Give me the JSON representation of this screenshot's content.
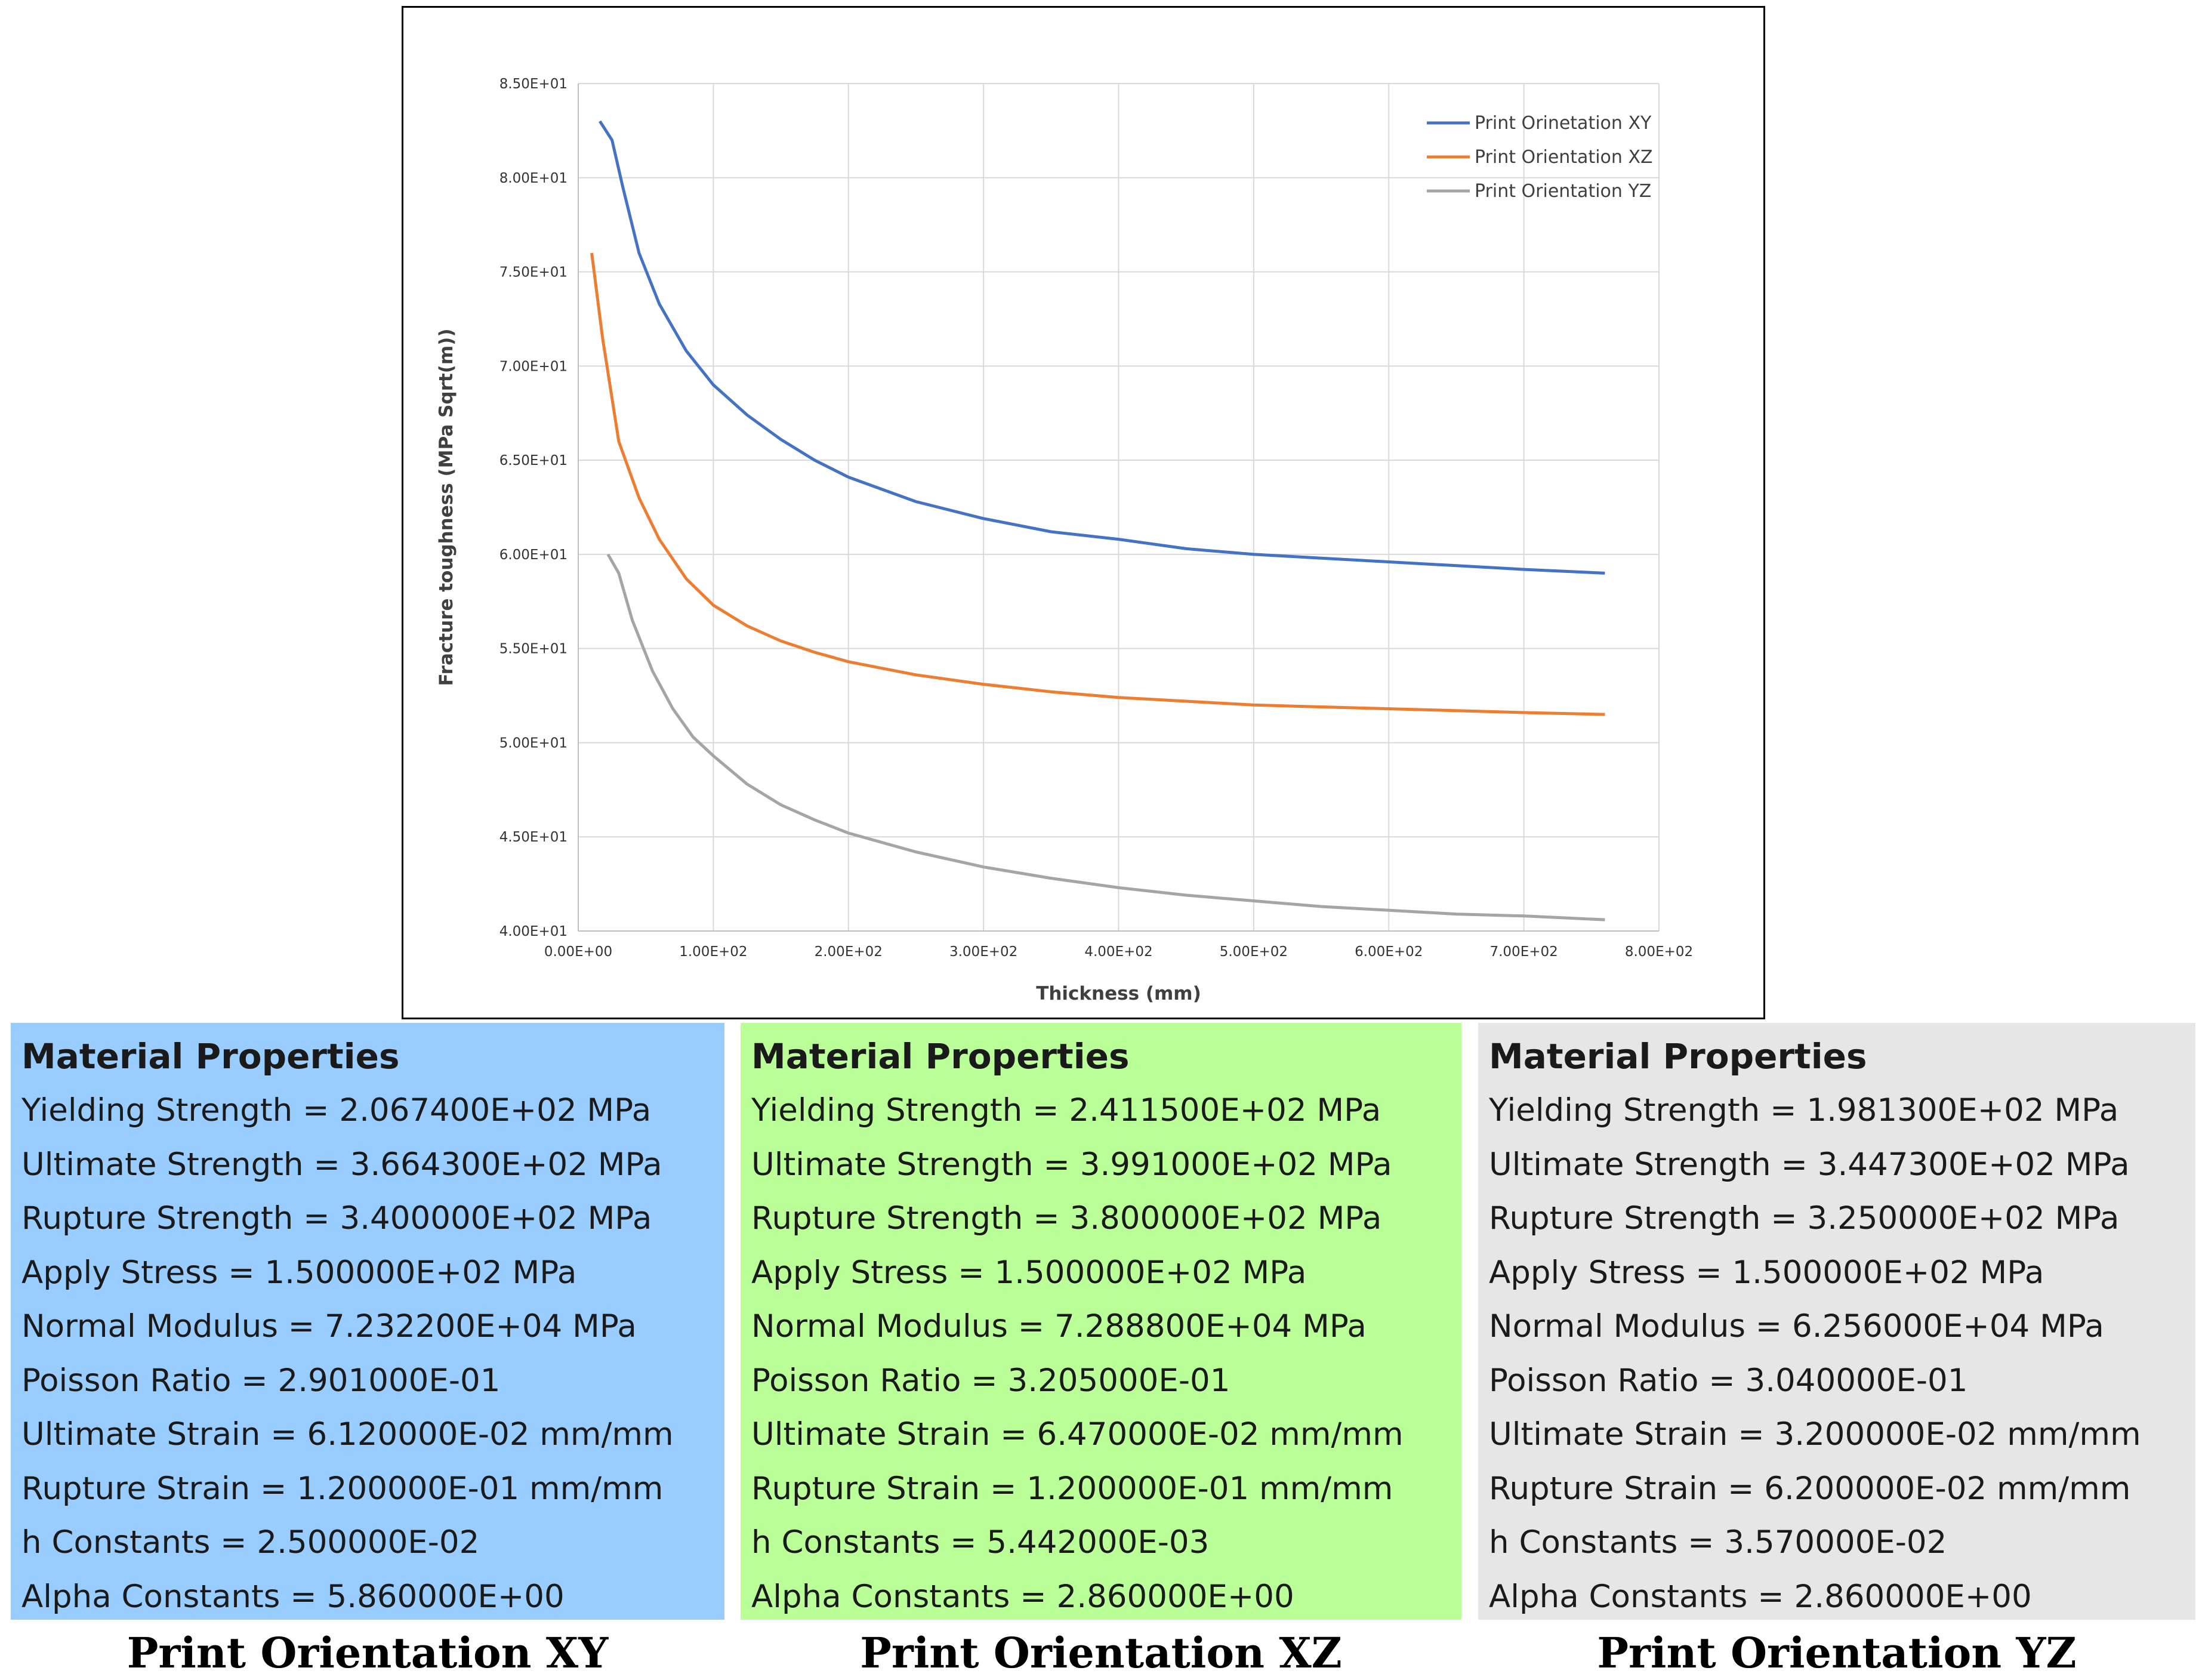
{
  "chart_data": {
    "type": "line",
    "title": "",
    "xlabel": "Thickness (mm)",
    "ylabel": "Fracture toughness (MPa Sqrt(m))",
    "xlim": [
      0,
      800
    ],
    "ylim": [
      40,
      85
    ],
    "x_ticks": [
      0,
      100,
      200,
      300,
      400,
      500,
      600,
      700,
      800
    ],
    "x_tick_labels": [
      "0.00E+00",
      "1.00E+02",
      "2.00E+02",
      "3.00E+02",
      "4.00E+02",
      "5.00E+02",
      "6.00E+02",
      "7.00E+02",
      "8.00E+02"
    ],
    "y_ticks": [
      40,
      45,
      50,
      55,
      60,
      65,
      70,
      75,
      80,
      85
    ],
    "y_tick_labels": [
      "4.00E+01",
      "4.50E+01",
      "5.00E+01",
      "5.50E+01",
      "6.00E+01",
      "6.50E+01",
      "7.00E+01",
      "7.50E+01",
      "8.00E+01",
      "8.50E+01"
    ],
    "grid": true,
    "legend_position": "top-right",
    "series": [
      {
        "name": "Print Orinetation XY",
        "color": "#4472c4",
        "x": [
          16,
          25,
          33,
          45,
          60,
          80,
          100,
          125,
          150,
          175,
          200,
          250,
          300,
          350,
          400,
          450,
          500,
          550,
          600,
          650,
          700,
          760
        ],
        "y": [
          83.0,
          82.0,
          79.5,
          76.0,
          73.3,
          70.8,
          69.0,
          67.4,
          66.1,
          65.0,
          64.1,
          62.8,
          61.9,
          61.2,
          60.8,
          60.3,
          60.0,
          59.8,
          59.6,
          59.4,
          59.2,
          59.0
        ]
      },
      {
        "name": "Print Orientation XZ",
        "color": "#ed7d31",
        "x": [
          10,
          18,
          30,
          45,
          60,
          80,
          100,
          125,
          150,
          175,
          200,
          250,
          300,
          350,
          400,
          450,
          500,
          550,
          600,
          650,
          700,
          760
        ],
        "y": [
          76.0,
          71.5,
          66.0,
          63.0,
          60.8,
          58.7,
          57.3,
          56.2,
          55.4,
          54.8,
          54.3,
          53.6,
          53.1,
          52.7,
          52.4,
          52.2,
          52.0,
          51.9,
          51.8,
          51.7,
          51.6,
          51.5
        ]
      },
      {
        "name": "Print Orientation YZ",
        "color": "#a5a5a5",
        "x": [
          22,
          30,
          40,
          55,
          70,
          85,
          100,
          125,
          150,
          175,
          200,
          250,
          300,
          350,
          400,
          450,
          500,
          550,
          600,
          650,
          700,
          760
        ],
        "y": [
          60.0,
          59.0,
          56.5,
          53.8,
          51.8,
          50.3,
          49.3,
          47.8,
          46.7,
          45.9,
          45.2,
          44.2,
          43.4,
          42.8,
          42.3,
          41.9,
          41.6,
          41.3,
          41.1,
          40.9,
          40.8,
          40.6
        ]
      }
    ]
  },
  "panels": {
    "xy": {
      "color": "#99ccff",
      "title": "Material Properties",
      "caption": "Print Orientation XY",
      "rows": [
        "Yielding Strength = 2.067400E+02 MPa",
        "Ultimate Strength = 3.664300E+02 MPa",
        "Rupture Strength = 3.400000E+02 MPa",
        "Apply Stress = 1.500000E+02 MPa",
        "Normal Modulus = 7.232200E+04 MPa",
        "Poisson Ratio = 2.901000E-01",
        "Ultimate Strain = 6.120000E-02 mm/mm",
        "Rupture Strain = 1.200000E-01 mm/mm",
        "h Constants = 2.500000E-02",
        "Alpha Constants = 5.860000E+00"
      ]
    },
    "xz": {
      "color": "#bbff99",
      "title": "Material Properties",
      "caption": "Print Orientation XZ",
      "rows": [
        "Yielding Strength = 2.411500E+02 MPa",
        "Ultimate Strength = 3.991000E+02 MPa",
        "Rupture Strength = 3.800000E+02 MPa",
        "Apply Stress = 1.500000E+02 MPa",
        "Normal Modulus = 7.288800E+04 MPa",
        "Poisson Ratio = 3.205000E-01",
        "Ultimate Strain = 6.470000E-02 mm/mm",
        "Rupture Strain = 1.200000E-01 mm/mm",
        "h Constants = 5.442000E-03",
        "Alpha Constants = 2.860000E+00"
      ]
    },
    "yz": {
      "color": "#e6e6e6",
      "title": "Material Properties",
      "caption": "Print Orientation YZ",
      "rows": [
        "Yielding Strength = 1.981300E+02 MPa",
        "Ultimate Strength = 3.447300E+02 MPa",
        "Rupture Strength = 3.250000E+02 MPa",
        "Apply Stress = 1.500000E+02 MPa",
        "Normal Modulus = 6.256000E+04 MPa",
        "Poisson Ratio = 3.040000E-01",
        "Ultimate Strain = 3.200000E-02 mm/mm",
        "Rupture Strain = 6.200000E-02 mm/mm",
        "h Constants = 3.570000E-02",
        "Alpha Constants = 2.860000E+00"
      ]
    }
  }
}
